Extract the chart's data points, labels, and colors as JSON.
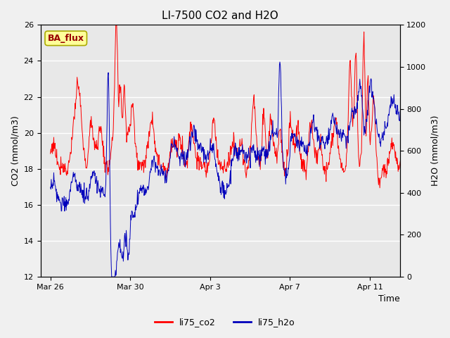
{
  "title": "LI-7500 CO2 and H2O",
  "xlabel": "Time",
  "ylabel_left": "CO2 (mmol/m3)",
  "ylabel_right": "H2O (mmol/m3)",
  "ylim_left": [
    12,
    26
  ],
  "ylim_right": [
    0,
    1200
  ],
  "yticks_left": [
    12,
    14,
    16,
    18,
    20,
    22,
    24,
    26
  ],
  "yticks_right": [
    0,
    200,
    400,
    600,
    800,
    1000,
    1200
  ],
  "background_color": "#f0f0f0",
  "plot_bg_color": "#e8e8e8",
  "grid_color": "#ffffff",
  "co2_color": "#ff0000",
  "h2o_color": "#0000bb",
  "co2_label": "li75_co2",
  "h2o_label": "li75_h2o",
  "annotation_text": "BA_flux",
  "annotation_bg": "#ffff99",
  "annotation_border": "#aaaa00",
  "title_fontsize": 11,
  "axis_label_fontsize": 9,
  "tick_fontsize": 8,
  "legend_fontsize": 9,
  "xtick_positions_days": [
    0,
    4,
    8,
    12,
    16
  ],
  "xtick_labels": [
    "Mar 26",
    "Mar 30",
    "Apr 3",
    "Apr 7",
    "Apr 11"
  ],
  "x_min": -0.5,
  "x_max": 17.5,
  "line_width": 0.7
}
